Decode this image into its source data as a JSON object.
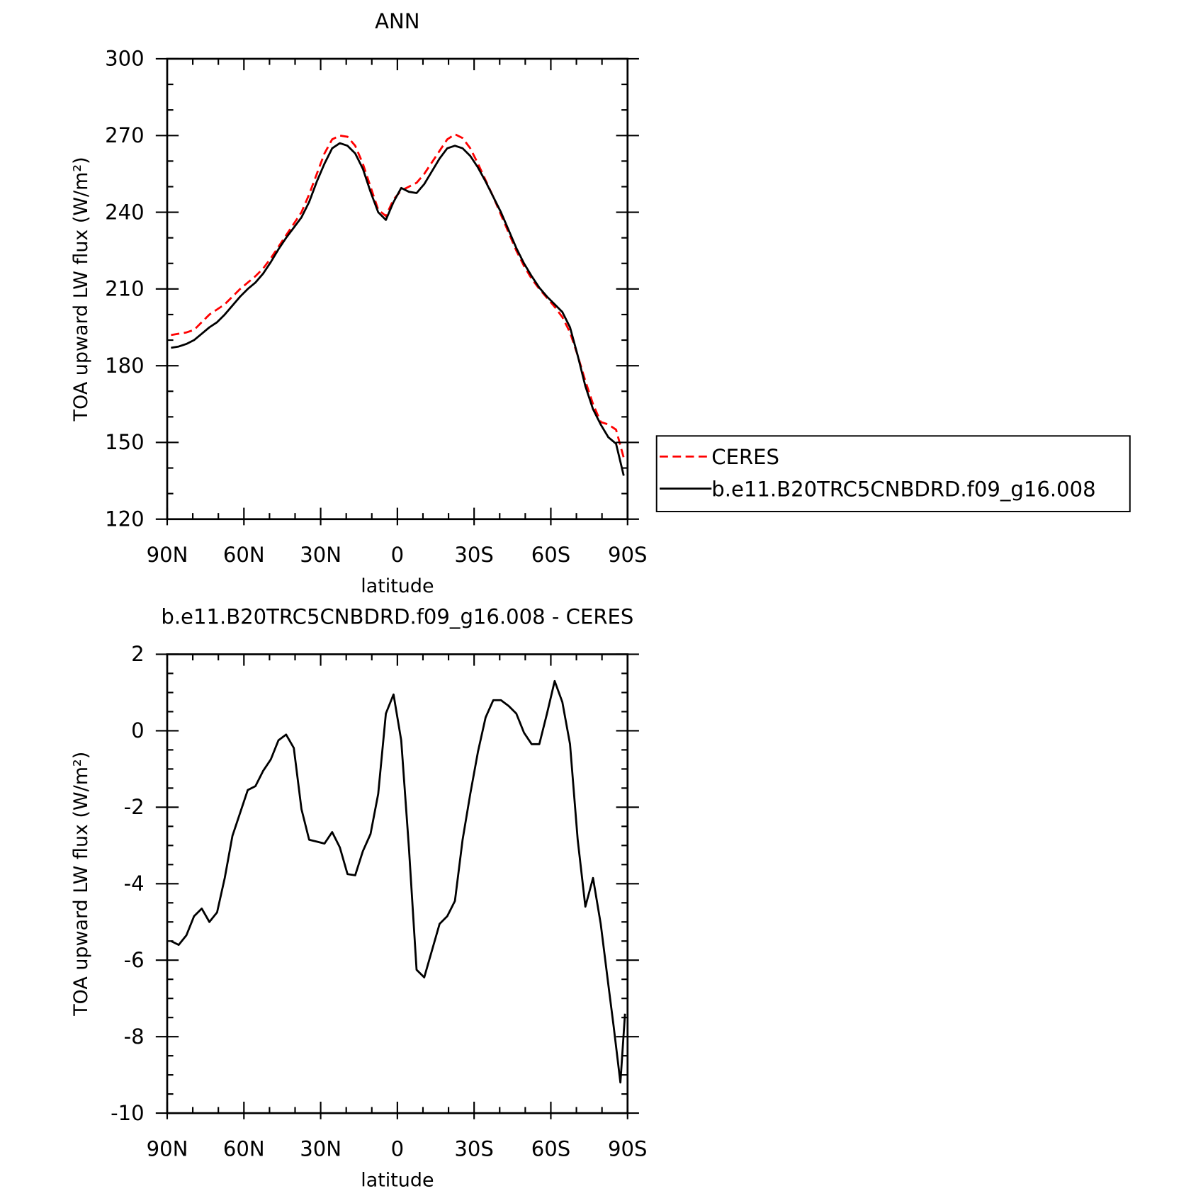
{
  "chart_data": [
    {
      "type": "line",
      "title": "ANN",
      "ylabel": "TOA upward LW flux (W/m²)",
      "xlabel": "latitude",
      "x": [
        88.5,
        85.5,
        82.5,
        79.5,
        76.5,
        73.5,
        70.5,
        67.5,
        64.5,
        61.5,
        58.5,
        55.5,
        52.5,
        49.5,
        46.5,
        43.5,
        40.5,
        37.5,
        34.5,
        31.5,
        28.5,
        25.5,
        22.5,
        19.5,
        16.5,
        13.5,
        10.5,
        7.5,
        4.5,
        1.5,
        -1.5,
        -4.5,
        -7.5,
        -10.5,
        -13.5,
        -16.5,
        -19.5,
        -22.5,
        -25.5,
        -28.5,
        -31.5,
        -34.5,
        -37.5,
        -40.5,
        -43.5,
        -46.5,
        -49.5,
        -52.5,
        -55.5,
        -58.5,
        -61.5,
        -64.5,
        -67.5,
        -70.5,
        -73.5,
        -76.5,
        -79.5,
        -82.5,
        -85.5,
        -88.5
      ],
      "series": [
        {
          "name": "CERES",
          "color": "#ff0000",
          "dash": true,
          "values": [
            192,
            192.5,
            193,
            194,
            197,
            200,
            202,
            204,
            207,
            210,
            212.5,
            215,
            218,
            222,
            226.5,
            231,
            235.5,
            240,
            247,
            255,
            263,
            268.5,
            270,
            269.5,
            266,
            259,
            250,
            241,
            238.5,
            245,
            248.5,
            250,
            251.5,
            255,
            259.5,
            264,
            268.5,
            270.5,
            269,
            265,
            259,
            252.5,
            246,
            239,
            232,
            225,
            219,
            214,
            210,
            206.5,
            203,
            199,
            193,
            184,
            174,
            165,
            158,
            157,
            155,
            144
          ]
        },
        {
          "name": "b.e11.B20TRC5CNBDRD.f09_g16.008",
          "color": "#000000",
          "dash": false,
          "values": [
            187,
            187.5,
            188.5,
            190,
            192.5,
            195,
            197,
            200,
            203.5,
            207,
            210,
            212.5,
            216,
            220.5,
            225.5,
            230,
            234,
            238,
            244,
            252,
            259,
            265,
            267,
            266,
            263,
            257,
            248,
            240,
            237,
            244,
            249.5,
            248,
            247.5,
            251,
            256,
            261,
            265,
            266,
            265,
            262,
            257.5,
            252,
            246,
            240,
            233,
            226,
            220,
            215,
            210.5,
            207,
            204,
            201,
            195,
            184,
            172,
            163,
            157,
            152,
            149.5,
            137
          ]
        }
      ],
      "xlim": [
        90,
        -90
      ],
      "xticks": [
        {
          "value": 90,
          "label": "90N"
        },
        {
          "value": 60,
          "label": "60N"
        },
        {
          "value": 30,
          "label": "30N"
        },
        0,
        {
          "value": -30,
          "label": "30S"
        },
        {
          "value": -60,
          "label": "60S"
        },
        {
          "value": -90,
          "label": "90S"
        }
      ],
      "ylim": [
        120,
        300
      ],
      "yticks": [
        120,
        150,
        180,
        210,
        240,
        270,
        300
      ],
      "legend": "right"
    },
    {
      "type": "line",
      "title": "b.e11.B20TRC5CNBDRD.f09_g16.008 - CERES",
      "ylabel": "TOA upward LW flux (W/m²)",
      "xlabel": "latitude",
      "x": [
        88.5,
        85.5,
        82.5,
        79.5,
        76.5,
        73.5,
        70.5,
        67.5,
        64.5,
        61.5,
        58.5,
        55.5,
        52.5,
        49.5,
        46.5,
        43.5,
        40.5,
        37.5,
        34.5,
        31.5,
        28.5,
        25.5,
        22.5,
        19.5,
        16.5,
        13.5,
        10.5,
        7.5,
        4.5,
        1.5,
        -1.5,
        -4.5,
        -7.5,
        -10.5,
        -13.5,
        -16.5,
        -19.5,
        -22.5,
        -25.5,
        -28.5,
        -31.5,
        -34.5,
        -37.5,
        -40.5,
        -43.5,
        -46.5,
        -49.5,
        -52.5,
        -55.5,
        -58.5,
        -61.5,
        -64.5,
        -67.5,
        -70.5,
        -73.5,
        -76.5,
        -79.5,
        -82.5,
        -84.5,
        -87.2,
        -89
      ],
      "series": [
        {
          "name": "b.e11.B20TRC5CNBDRD.f09_g16.008 - CERES",
          "color": "#000000",
          "dash": false,
          "values": [
            -5.5,
            -5.6,
            -5.35,
            -4.85,
            -4.65,
            -5.0,
            -4.75,
            -3.85,
            -2.75,
            -2.15,
            -1.55,
            -1.45,
            -1.05,
            -0.75,
            -0.25,
            -0.1,
            -0.45,
            -2.05,
            -2.85,
            -2.9,
            -2.95,
            -2.65,
            -3.05,
            -3.75,
            -3.78,
            -3.15,
            -2.7,
            -1.65,
            0.45,
            0.95,
            -0.25,
            -3.05,
            -6.25,
            -6.45,
            -5.75,
            -5.05,
            -4.85,
            -4.45,
            -2.85,
            -1.65,
            -0.55,
            0.35,
            0.8,
            0.8,
            0.65,
            0.45,
            -0.05,
            -0.35,
            -0.35,
            0.45,
            1.3,
            0.75,
            -0.35,
            -2.85,
            -4.6,
            -3.85,
            -5.05,
            -6.65,
            -7.7,
            -9.2,
            -7.4
          ]
        }
      ],
      "xlim": [
        90,
        -90
      ],
      "xticks": [
        {
          "value": 90,
          "label": "90N"
        },
        {
          "value": 60,
          "label": "60N"
        },
        {
          "value": 30,
          "label": "30N"
        },
        0,
        {
          "value": -30,
          "label": "30S"
        },
        {
          "value": -60,
          "label": "60S"
        },
        {
          "value": -90,
          "label": "90S"
        }
      ],
      "ylim": [
        -10,
        2
      ],
      "yticks": [
        -10,
        -8,
        -6,
        -4,
        -2,
        0,
        2
      ]
    }
  ]
}
